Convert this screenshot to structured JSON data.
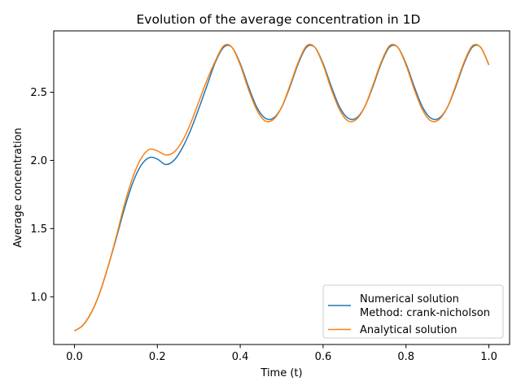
{
  "chart_data": {
    "type": "line",
    "title": "Evolution of the average concentration in 1D",
    "xlabel": "Time (t)",
    "ylabel": "Average concentration",
    "xlim": [
      -0.05,
      1.05
    ],
    "ylim": [
      0.65,
      2.95
    ],
    "xticks": [
      0.0,
      0.2,
      0.4,
      0.6,
      0.8,
      1.0
    ],
    "xtick_labels": [
      "0.0",
      "0.2",
      "0.4",
      "0.6",
      "0.8",
      "1.0"
    ],
    "yticks": [
      1.0,
      1.5,
      2.0,
      2.5
    ],
    "ytick_labels": [
      "1.0",
      "1.5",
      "2.0",
      "2.5"
    ],
    "grid": false,
    "legend_position": "lower-right",
    "series": [
      {
        "name": "Numerical solution\nMethod: crank-nicholson",
        "legend_lines": [
          "Numerical solution",
          "Method: crank-nicholson"
        ],
        "color": "#1f77b4",
        "points": [
          [
            0.0,
            0.75
          ],
          [
            0.02,
            0.79
          ],
          [
            0.04,
            0.88
          ],
          [
            0.06,
            1.02
          ],
          [
            0.08,
            1.21
          ],
          [
            0.1,
            1.42
          ],
          [
            0.12,
            1.64
          ],
          [
            0.14,
            1.83
          ],
          [
            0.16,
            1.96
          ],
          [
            0.18,
            2.02
          ],
          [
            0.2,
            2.01
          ],
          [
            0.22,
            1.97
          ],
          [
            0.24,
            2.0
          ],
          [
            0.26,
            2.09
          ],
          [
            0.28,
            2.22
          ],
          [
            0.3,
            2.38
          ],
          [
            0.32,
            2.55
          ],
          [
            0.34,
            2.72
          ],
          [
            0.36,
            2.83
          ],
          [
            0.38,
            2.83
          ],
          [
            0.4,
            2.71
          ],
          [
            0.42,
            2.54
          ],
          [
            0.44,
            2.39
          ],
          [
            0.46,
            2.31
          ],
          [
            0.48,
            2.31
          ],
          [
            0.5,
            2.39
          ],
          [
            0.52,
            2.54
          ],
          [
            0.54,
            2.71
          ],
          [
            0.56,
            2.83
          ],
          [
            0.58,
            2.83
          ],
          [
            0.6,
            2.71
          ],
          [
            0.62,
            2.54
          ],
          [
            0.64,
            2.39
          ],
          [
            0.66,
            2.31
          ],
          [
            0.68,
            2.31
          ],
          [
            0.7,
            2.39
          ],
          [
            0.72,
            2.54
          ],
          [
            0.74,
            2.71
          ],
          [
            0.76,
            2.83
          ],
          [
            0.78,
            2.83
          ],
          [
            0.8,
            2.71
          ],
          [
            0.82,
            2.54
          ],
          [
            0.84,
            2.39
          ],
          [
            0.86,
            2.31
          ],
          [
            0.88,
            2.31
          ],
          [
            0.9,
            2.39
          ],
          [
            0.92,
            2.54
          ],
          [
            0.94,
            2.71
          ],
          [
            0.96,
            2.83
          ],
          [
            0.98,
            2.83
          ],
          [
            1.0,
            2.7
          ]
        ]
      },
      {
        "name": "Analytical solution",
        "legend_lines": [
          "Analytical solution"
        ],
        "color": "#ff7f0e",
        "points": [
          [
            0.0,
            0.75
          ],
          [
            0.02,
            0.79
          ],
          [
            0.04,
            0.88
          ],
          [
            0.06,
            1.02
          ],
          [
            0.08,
            1.21
          ],
          [
            0.1,
            1.43
          ],
          [
            0.12,
            1.67
          ],
          [
            0.14,
            1.87
          ],
          [
            0.16,
            2.01
          ],
          [
            0.18,
            2.08
          ],
          [
            0.2,
            2.07
          ],
          [
            0.22,
            2.04
          ],
          [
            0.24,
            2.06
          ],
          [
            0.26,
            2.14
          ],
          [
            0.28,
            2.27
          ],
          [
            0.3,
            2.43
          ],
          [
            0.32,
            2.59
          ],
          [
            0.34,
            2.73
          ],
          [
            0.36,
            2.84
          ],
          [
            0.38,
            2.83
          ],
          [
            0.4,
            2.7
          ],
          [
            0.42,
            2.52
          ],
          [
            0.44,
            2.37
          ],
          [
            0.46,
            2.29
          ],
          [
            0.48,
            2.3
          ],
          [
            0.5,
            2.39
          ],
          [
            0.52,
            2.55
          ],
          [
            0.54,
            2.72
          ],
          [
            0.56,
            2.84
          ],
          [
            0.58,
            2.83
          ],
          [
            0.6,
            2.7
          ],
          [
            0.62,
            2.52
          ],
          [
            0.64,
            2.37
          ],
          [
            0.66,
            2.29
          ],
          [
            0.68,
            2.3
          ],
          [
            0.7,
            2.39
          ],
          [
            0.72,
            2.55
          ],
          [
            0.74,
            2.72
          ],
          [
            0.76,
            2.84
          ],
          [
            0.78,
            2.83
          ],
          [
            0.8,
            2.7
          ],
          [
            0.82,
            2.52
          ],
          [
            0.84,
            2.37
          ],
          [
            0.86,
            2.29
          ],
          [
            0.88,
            2.3
          ],
          [
            0.9,
            2.39
          ],
          [
            0.92,
            2.55
          ],
          [
            0.94,
            2.72
          ],
          [
            0.96,
            2.84
          ],
          [
            0.98,
            2.83
          ],
          [
            1.0,
            2.7
          ]
        ]
      }
    ]
  }
}
